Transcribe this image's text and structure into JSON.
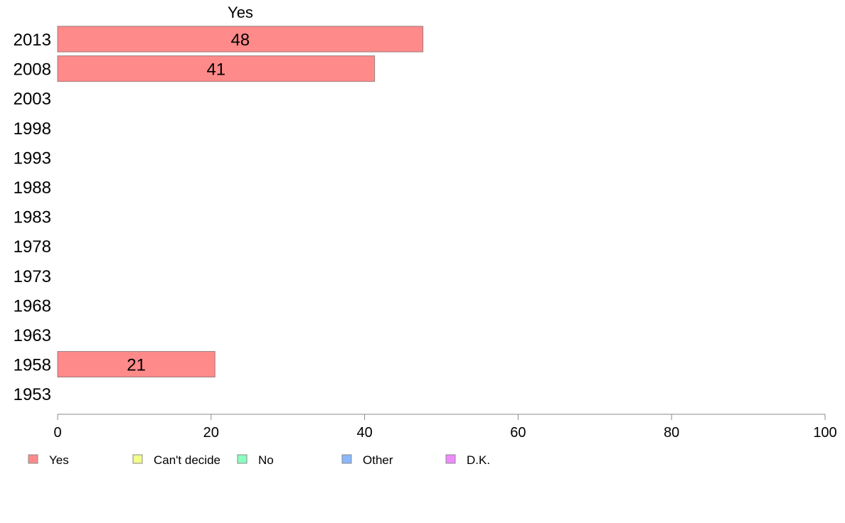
{
  "chart_data": {
    "type": "bar",
    "orientation": "horizontal",
    "series_title": "Yes",
    "categories": [
      "2013",
      "2008",
      "2003",
      "1998",
      "1993",
      "1988",
      "1983",
      "1978",
      "1973",
      "1968",
      "1963",
      "1958",
      "1953"
    ],
    "series": [
      {
        "name": "Yes",
        "color": "#ff8a8a",
        "values": [
          47.6,
          41.3,
          null,
          null,
          null,
          null,
          null,
          null,
          null,
          null,
          null,
          20.5,
          null
        ],
        "labels": [
          "48",
          "41",
          "",
          "",
          "",
          "",
          "",
          "",
          "",
          "",
          "",
          "21",
          ""
        ]
      }
    ],
    "xlim": [
      0,
      100
    ],
    "xticks": [
      0,
      20,
      40,
      60,
      80,
      100
    ],
    "grid": false,
    "legend_position": "bottom",
    "legend": [
      {
        "label": "Yes",
        "color": "#ff8a8a"
      },
      {
        "label": "Can't decide",
        "color": "#f0ff8a"
      },
      {
        "label": "No",
        "color": "#8affc0"
      },
      {
        "label": "Other",
        "color": "#8ab8ff"
      },
      {
        "label": "D.K.",
        "color": "#f08aff"
      }
    ],
    "colors": {
      "bar_stroke": "#9a7a7a",
      "axis": "#888888"
    }
  }
}
